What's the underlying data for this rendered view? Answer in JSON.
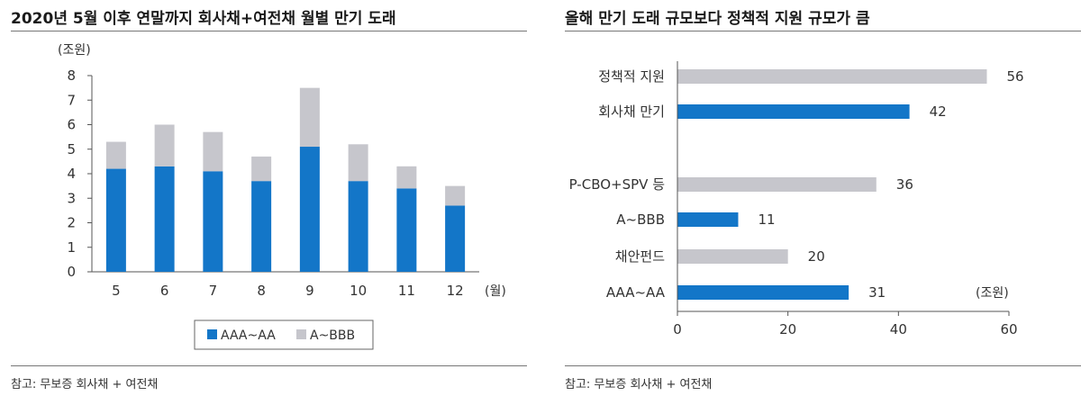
{
  "colors": {
    "primary": "#1376c8",
    "secondary": "#c6c6cc",
    "axis": "#555555",
    "text": "#333333"
  },
  "left_panel": {
    "title": "2020년 5월 이후 연말까지 회사채+여전채 월별 만기 도래",
    "source": "참고: 무보증 회사채 + 여전채"
  },
  "right_panel": {
    "title": "올해 만기 도래 규모보다 정책적 지원 규모가 큼",
    "source": "참고: 무보증 회사채 + 여전채"
  },
  "chart_data": [
    {
      "type": "bar",
      "stacked": true,
      "unit_label": "(조원)",
      "x_unit_label": "(월)",
      "categories": [
        "5",
        "6",
        "7",
        "8",
        "9",
        "10",
        "11",
        "12"
      ],
      "series": [
        {
          "name": "AAA~AA",
          "color": "#1376c8",
          "values": [
            4.2,
            4.3,
            4.1,
            3.7,
            5.1,
            3.7,
            3.4,
            2.7
          ]
        },
        {
          "name": "A~BBB",
          "color": "#c6c6cc",
          "values": [
            1.1,
            1.7,
            1.6,
            1.0,
            2.4,
            1.5,
            0.9,
            0.8
          ]
        }
      ],
      "ylim": [
        0,
        8
      ],
      "yticks": [
        "0",
        "1",
        "2",
        "3",
        "4",
        "5",
        "6",
        "7",
        "8"
      ],
      "legend_position": "bottom"
    },
    {
      "type": "bar",
      "orientation": "horizontal",
      "unit_label": "(조원)",
      "categories": [
        "정책적 지원",
        "회사채 만기",
        "P-CBO+SPV 등",
        "A~BBB",
        "채안펀드",
        "AAA~AA"
      ],
      "values": [
        56,
        42,
        36,
        11,
        20,
        31
      ],
      "value_labels": [
        "56",
        "42",
        "36",
        "11",
        "20",
        "31"
      ],
      "colors": [
        "#c6c6cc",
        "#1376c8",
        "#c6c6cc",
        "#1376c8",
        "#c6c6cc",
        "#1376c8"
      ],
      "xlim": [
        0,
        60
      ],
      "xticks": [
        "0",
        "20",
        "40",
        "60"
      ]
    }
  ]
}
